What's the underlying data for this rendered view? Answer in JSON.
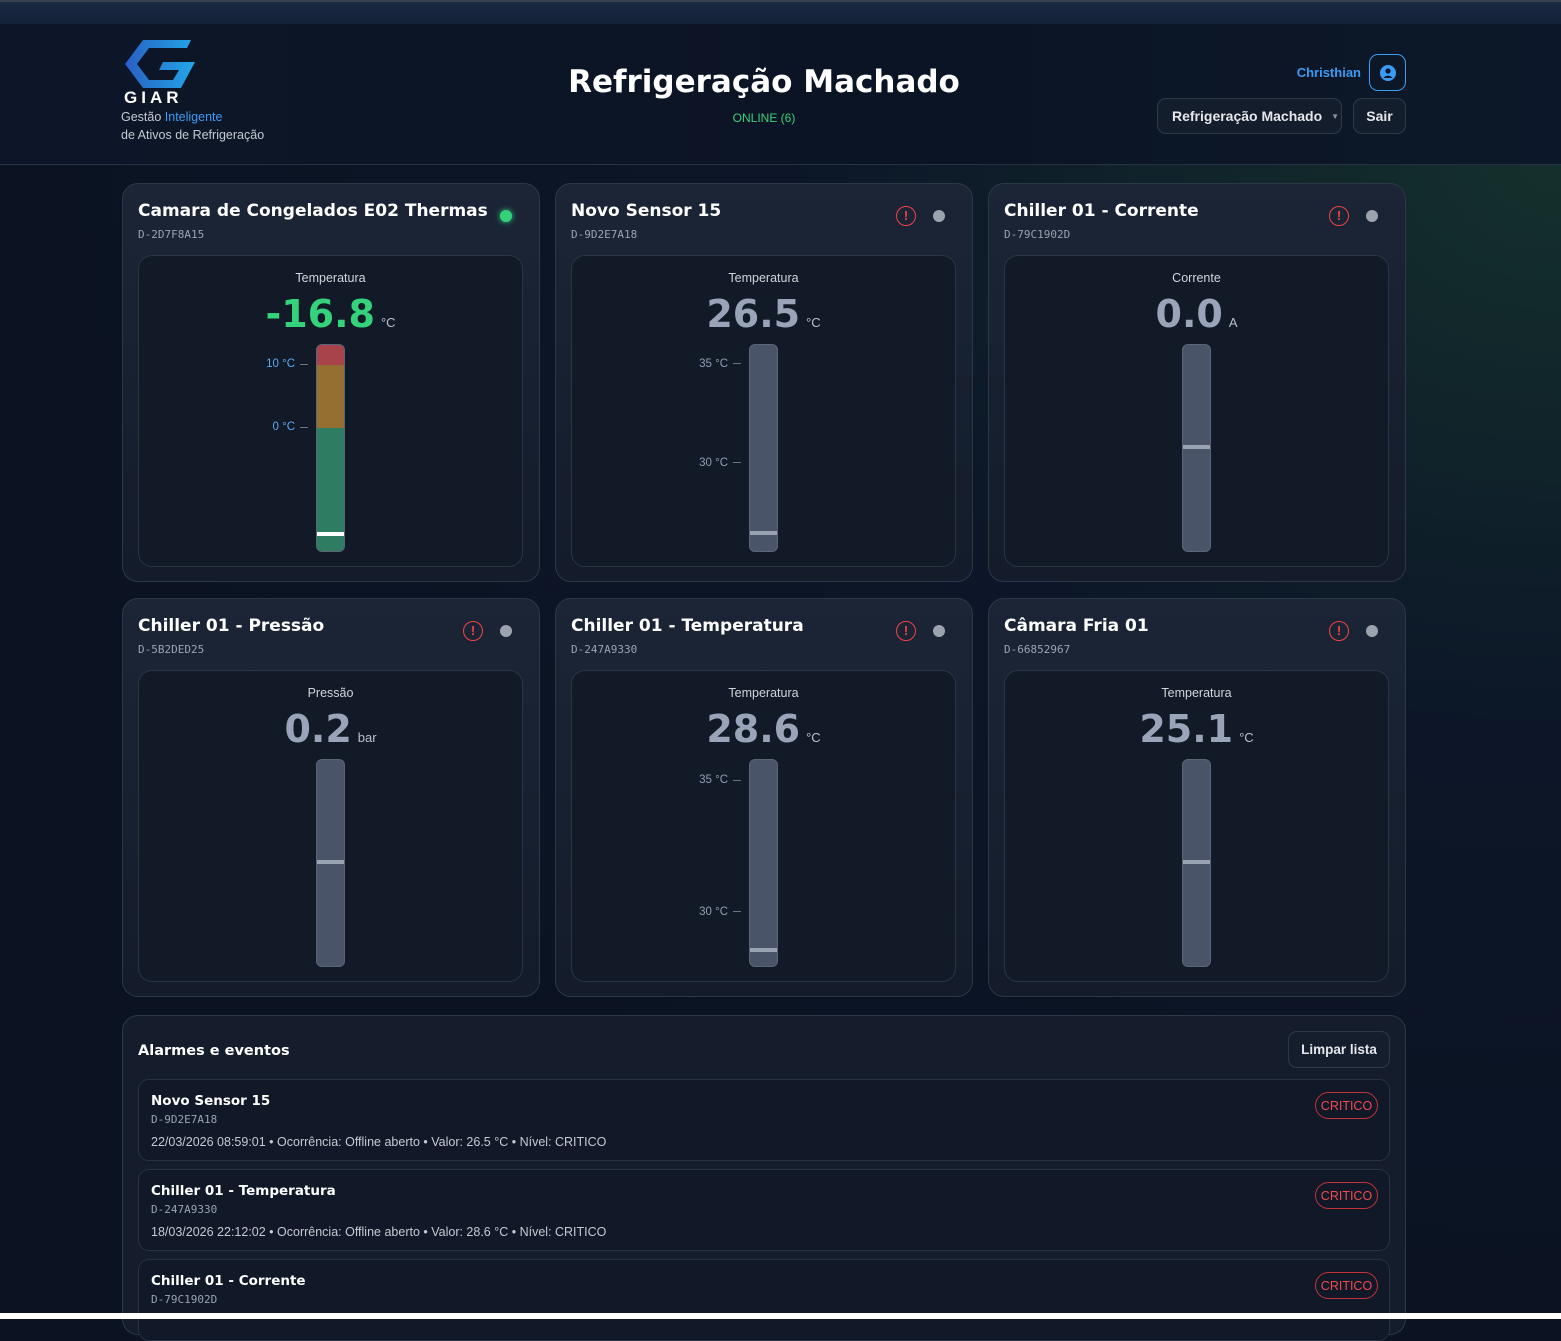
{
  "header": {
    "brand": "GIAR",
    "tagline_1": "Gestão ",
    "tagline_hl": "Inteligente",
    "tagline_2": "de Ativos de Refrigeração",
    "title": "Refrigeração Machado",
    "status": "ONLINE (6)",
    "user": "Christhian",
    "company_select": "Refrigeração Machado",
    "logout": "Sair"
  },
  "colors": {
    "accent": "#3b9cf5",
    "online": "#34d27a",
    "critical": "#ef4444",
    "zone_high": "#a8434c",
    "zone_warn": "#956f31",
    "zone_ok": "#2e7d62"
  },
  "devices": [
    {
      "name": "Camara de Congelados E02 Thermas",
      "id": "D-2D7F8A15",
      "online": true,
      "alert": false,
      "metric": "Temperatura",
      "value": "-16.8",
      "unit": "°C",
      "scale": [
        -19.8,
        13.2
      ],
      "marker": -16.8,
      "ticks": [
        "10 °C",
        "0 °C"
      ],
      "tick_values": [
        10,
        0
      ],
      "zones": true
    },
    {
      "name": "Novo Sensor 15",
      "id": "D-9D2E7A18",
      "online": false,
      "alert": true,
      "metric": "Temperatura",
      "value": "26.5",
      "unit": "°C",
      "scale": [
        25.5,
        36
      ],
      "marker": 26.5,
      "ticks": [
        "35 °C",
        "30 °C"
      ],
      "tick_values": [
        35,
        30
      ]
    },
    {
      "name": "Chiller 01 - Corrente",
      "id": "D-79C1902D",
      "online": false,
      "alert": true,
      "metric": "Corrente",
      "value": "0.0",
      "unit": "A",
      "level": 0.49
    },
    {
      "name": "Chiller 01 - Pressão",
      "id": "D-5B2DED25",
      "online": false,
      "alert": true,
      "metric": "Pressão",
      "value": "0.2",
      "unit": "bar",
      "level": 0.49
    },
    {
      "name": "Chiller 01 - Temperatura",
      "id": "D-247A9330",
      "online": false,
      "alert": true,
      "metric": "Temperatura",
      "value": "28.6",
      "unit": "°C",
      "scale": [
        27.9,
        35.8
      ],
      "marker": 28.6,
      "ticks": [
        "35 °C",
        "30 °C"
      ],
      "tick_values": [
        35,
        30
      ]
    },
    {
      "name": "Câmara Fria 01",
      "id": "D-66852967",
      "online": false,
      "alert": true,
      "metric": "Temperatura",
      "value": "25.1",
      "unit": "°C",
      "level": 0.49
    }
  ],
  "alarms": {
    "title": "Alarmes e eventos",
    "clear": "Limpar lista",
    "items": [
      {
        "name": "Novo Sensor 15",
        "id": "D-9D2E7A18",
        "detail": "22/03/2026 08:59:01 • Ocorrência: Offline aberto • Valor: 26.5 °C • Nível: CRITICO",
        "level": "CRITICO"
      },
      {
        "name": "Chiller 01 - Temperatura",
        "id": "D-247A9330",
        "detail": "18/03/2026 22:12:02 • Ocorrência: Offline aberto • Valor: 28.6 °C • Nível: CRITICO",
        "level": "CRITICO"
      },
      {
        "name": "Chiller 01 - Corrente",
        "id": "D-79C1902D",
        "detail": "",
        "level": "CRITICO"
      }
    ]
  }
}
